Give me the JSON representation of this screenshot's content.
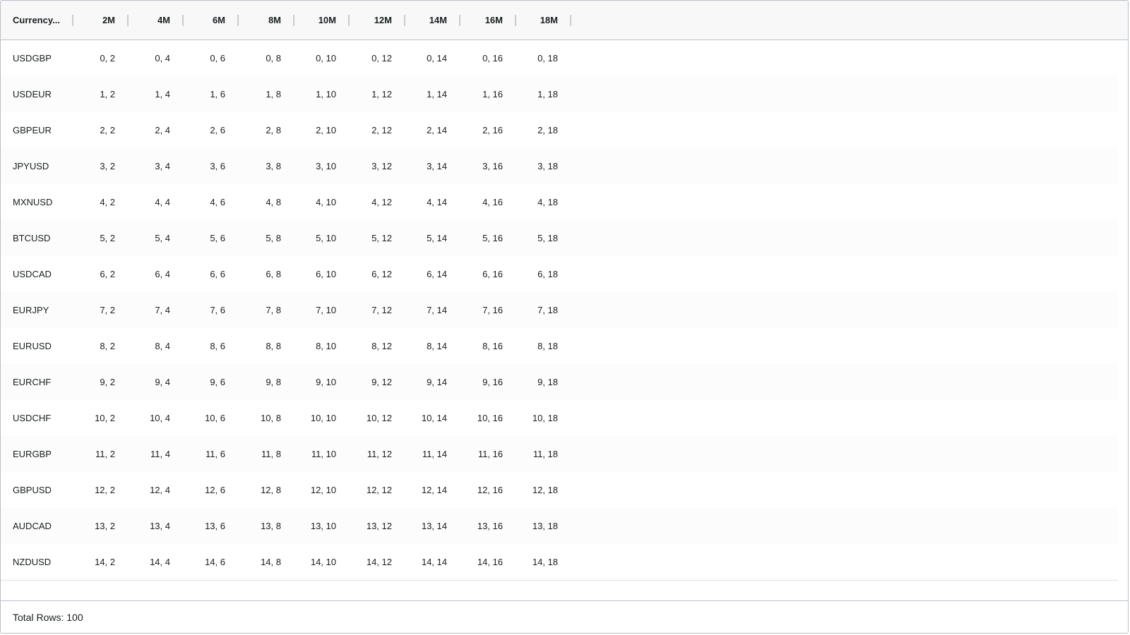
{
  "grid": {
    "columns": [
      "Currency...",
      "2M",
      "4M",
      "6M",
      "8M",
      "10M",
      "12M",
      "14M",
      "16M",
      "18M"
    ],
    "rows": [
      {
        "pair": "USDGBP",
        "values": [
          "0, 2",
          "0, 4",
          "0, 6",
          "0, 8",
          "0, 10",
          "0, 12",
          "0, 14",
          "0, 16",
          "0, 18"
        ]
      },
      {
        "pair": "USDEUR",
        "values": [
          "1, 2",
          "1, 4",
          "1, 6",
          "1, 8",
          "1, 10",
          "1, 12",
          "1, 14",
          "1, 16",
          "1, 18"
        ]
      },
      {
        "pair": "GBPEUR",
        "values": [
          "2, 2",
          "2, 4",
          "2, 6",
          "2, 8",
          "2, 10",
          "2, 12",
          "2, 14",
          "2, 16",
          "2, 18"
        ]
      },
      {
        "pair": "JPYUSD",
        "values": [
          "3, 2",
          "3, 4",
          "3, 6",
          "3, 8",
          "3, 10",
          "3, 12",
          "3, 14",
          "3, 16",
          "3, 18"
        ]
      },
      {
        "pair": "MXNUSD",
        "values": [
          "4, 2",
          "4, 4",
          "4, 6",
          "4, 8",
          "4, 10",
          "4, 12",
          "4, 14",
          "4, 16",
          "4, 18"
        ]
      },
      {
        "pair": "BTCUSD",
        "values": [
          "5, 2",
          "5, 4",
          "5, 6",
          "5, 8",
          "5, 10",
          "5, 12",
          "5, 14",
          "5, 16",
          "5, 18"
        ]
      },
      {
        "pair": "USDCAD",
        "values": [
          "6, 2",
          "6, 4",
          "6, 6",
          "6, 8",
          "6, 10",
          "6, 12",
          "6, 14",
          "6, 16",
          "6, 18"
        ]
      },
      {
        "pair": "EURJPY",
        "values": [
          "7, 2",
          "7, 4",
          "7, 6",
          "7, 8",
          "7, 10",
          "7, 12",
          "7, 14",
          "7, 16",
          "7, 18"
        ]
      },
      {
        "pair": "EURUSD",
        "values": [
          "8, 2",
          "8, 4",
          "8, 6",
          "8, 8",
          "8, 10",
          "8, 12",
          "8, 14",
          "8, 16",
          "8, 18"
        ]
      },
      {
        "pair": "EURCHF",
        "values": [
          "9, 2",
          "9, 4",
          "9, 6",
          "9, 8",
          "9, 10",
          "9, 12",
          "9, 14",
          "9, 16",
          "9, 18"
        ]
      },
      {
        "pair": "USDCHF",
        "values": [
          "10, 2",
          "10, 4",
          "10, 6",
          "10, 8",
          "10, 10",
          "10, 12",
          "10, 14",
          "10, 16",
          "10, 18"
        ]
      },
      {
        "pair": "EURGBP",
        "values": [
          "11, 2",
          "11, 4",
          "11, 6",
          "11, 8",
          "11, 10",
          "11, 12",
          "11, 14",
          "11, 16",
          "11, 18"
        ]
      },
      {
        "pair": "GBPUSD",
        "values": [
          "12, 2",
          "12, 4",
          "12, 6",
          "12, 8",
          "12, 10",
          "12, 12",
          "12, 14",
          "12, 16",
          "12, 18"
        ]
      },
      {
        "pair": "AUDCAD",
        "values": [
          "13, 2",
          "13, 4",
          "13, 6",
          "13, 8",
          "13, 10",
          "13, 12",
          "13, 14",
          "13, 16",
          "13, 18"
        ]
      },
      {
        "pair": "NZDUSD",
        "values": [
          "14, 2",
          "14, 4",
          "14, 6",
          "14, 8",
          "14, 10",
          "14, 12",
          "14, 14",
          "14, 16",
          "14, 18"
        ]
      }
    ]
  },
  "footer": {
    "total_rows": "Total Rows: 100"
  },
  "colors": {
    "header_bg": "#f8f8f8",
    "border": "#babfc7",
    "row_border": "#dde2eb",
    "odd_row_bg": "#fcfcfc",
    "text": "#181d1f"
  }
}
